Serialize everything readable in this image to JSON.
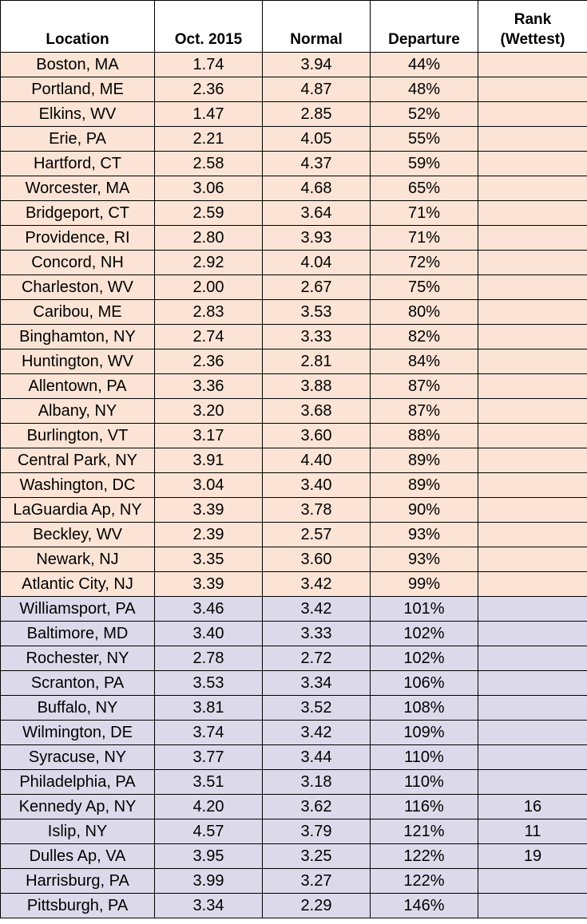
{
  "headers": {
    "location": "Location",
    "oct": "Oct. 2015",
    "normal": "Normal",
    "departure": "Departure",
    "rank_line1": "Rank",
    "rank_line2": "(Wettest)"
  },
  "row_colors": {
    "below_normal": "#fbe4d5",
    "above_normal": "#dcdaea"
  },
  "rows": [
    {
      "location": "Boston, MA",
      "oct": "1.74",
      "normal": "3.94",
      "departure": "44%",
      "rank": "",
      "group": "below"
    },
    {
      "location": "Portland, ME",
      "oct": "2.36",
      "normal": "4.87",
      "departure": "48%",
      "rank": "",
      "group": "below"
    },
    {
      "location": "Elkins, WV",
      "oct": "1.47",
      "normal": "2.85",
      "departure": "52%",
      "rank": "",
      "group": "below"
    },
    {
      "location": "Erie, PA",
      "oct": "2.21",
      "normal": "4.05",
      "departure": "55%",
      "rank": "",
      "group": "below"
    },
    {
      "location": "Hartford, CT",
      "oct": "2.58",
      "normal": "4.37",
      "departure": "59%",
      "rank": "",
      "group": "below"
    },
    {
      "location": "Worcester, MA",
      "oct": "3.06",
      "normal": "4.68",
      "departure": "65%",
      "rank": "",
      "group": "below"
    },
    {
      "location": "Bridgeport, CT",
      "oct": "2.59",
      "normal": "3.64",
      "departure": "71%",
      "rank": "",
      "group": "below"
    },
    {
      "location": "Providence, RI",
      "oct": "2.80",
      "normal": "3.93",
      "departure": "71%",
      "rank": "",
      "group": "below"
    },
    {
      "location": "Concord, NH",
      "oct": "2.92",
      "normal": "4.04",
      "departure": "72%",
      "rank": "",
      "group": "below"
    },
    {
      "location": "Charleston, WV",
      "oct": "2.00",
      "normal": "2.67",
      "departure": "75%",
      "rank": "",
      "group": "below"
    },
    {
      "location": "Caribou, ME",
      "oct": "2.83",
      "normal": "3.53",
      "departure": "80%",
      "rank": "",
      "group": "below"
    },
    {
      "location": "Binghamton, NY",
      "oct": "2.74",
      "normal": "3.33",
      "departure": "82%",
      "rank": "",
      "group": "below"
    },
    {
      "location": "Huntington, WV",
      "oct": "2.36",
      "normal": "2.81",
      "departure": "84%",
      "rank": "",
      "group": "below"
    },
    {
      "location": "Allentown, PA",
      "oct": "3.36",
      "normal": "3.88",
      "departure": "87%",
      "rank": "",
      "group": "below"
    },
    {
      "location": "Albany, NY",
      "oct": "3.20",
      "normal": "3.68",
      "departure": "87%",
      "rank": "",
      "group": "below"
    },
    {
      "location": "Burlington, VT",
      "oct": "3.17",
      "normal": "3.60",
      "departure": "88%",
      "rank": "",
      "group": "below"
    },
    {
      "location": "Central Park, NY",
      "oct": "3.91",
      "normal": "4.40",
      "departure": "89%",
      "rank": "",
      "group": "below"
    },
    {
      "location": "Washington, DC",
      "oct": "3.04",
      "normal": "3.40",
      "departure": "89%",
      "rank": "",
      "group": "below"
    },
    {
      "location": "LaGuardia Ap, NY",
      "oct": "3.39",
      "normal": "3.78",
      "departure": "90%",
      "rank": "",
      "group": "below"
    },
    {
      "location": "Beckley, WV",
      "oct": "2.39",
      "normal": "2.57",
      "departure": "93%",
      "rank": "",
      "group": "below"
    },
    {
      "location": "Newark, NJ",
      "oct": "3.35",
      "normal": "3.60",
      "departure": "93%",
      "rank": "",
      "group": "below"
    },
    {
      "location": "Atlantic City, NJ",
      "oct": "3.39",
      "normal": "3.42",
      "departure": "99%",
      "rank": "",
      "group": "below"
    },
    {
      "location": "Williamsport, PA",
      "oct": "3.46",
      "normal": "3.42",
      "departure": "101%",
      "rank": "",
      "group": "above"
    },
    {
      "location": "Baltimore, MD",
      "oct": "3.40",
      "normal": "3.33",
      "departure": "102%",
      "rank": "",
      "group": "above"
    },
    {
      "location": "Rochester, NY",
      "oct": "2.78",
      "normal": "2.72",
      "departure": "102%",
      "rank": "",
      "group": "above"
    },
    {
      "location": "Scranton, PA",
      "oct": "3.53",
      "normal": "3.34",
      "departure": "106%",
      "rank": "",
      "group": "above"
    },
    {
      "location": "Buffalo, NY",
      "oct": "3.81",
      "normal": "3.52",
      "departure": "108%",
      "rank": "",
      "group": "above"
    },
    {
      "location": "Wilmington, DE",
      "oct": "3.74",
      "normal": "3.42",
      "departure": "109%",
      "rank": "",
      "group": "above"
    },
    {
      "location": "Syracuse, NY",
      "oct": "3.77",
      "normal": "3.44",
      "departure": "110%",
      "rank": "",
      "group": "above"
    },
    {
      "location": "Philadelphia, PA",
      "oct": "3.51",
      "normal": "3.18",
      "departure": "110%",
      "rank": "",
      "group": "above"
    },
    {
      "location": "Kennedy Ap, NY",
      "oct": "4.20",
      "normal": "3.62",
      "departure": "116%",
      "rank": "16",
      "group": "above"
    },
    {
      "location": "Islip, NY",
      "oct": "4.57",
      "normal": "3.79",
      "departure": "121%",
      "rank": "11",
      "group": "above"
    },
    {
      "location": "Dulles Ap, VA",
      "oct": "3.95",
      "normal": "3.25",
      "departure": "122%",
      "rank": "19",
      "group": "above"
    },
    {
      "location": "Harrisburg, PA",
      "oct": "3.99",
      "normal": "3.27",
      "departure": "122%",
      "rank": "",
      "group": "above"
    },
    {
      "location": "Pittsburgh, PA",
      "oct": "3.34",
      "normal": "2.29",
      "departure": "146%",
      "rank": "",
      "group": "above"
    }
  ]
}
